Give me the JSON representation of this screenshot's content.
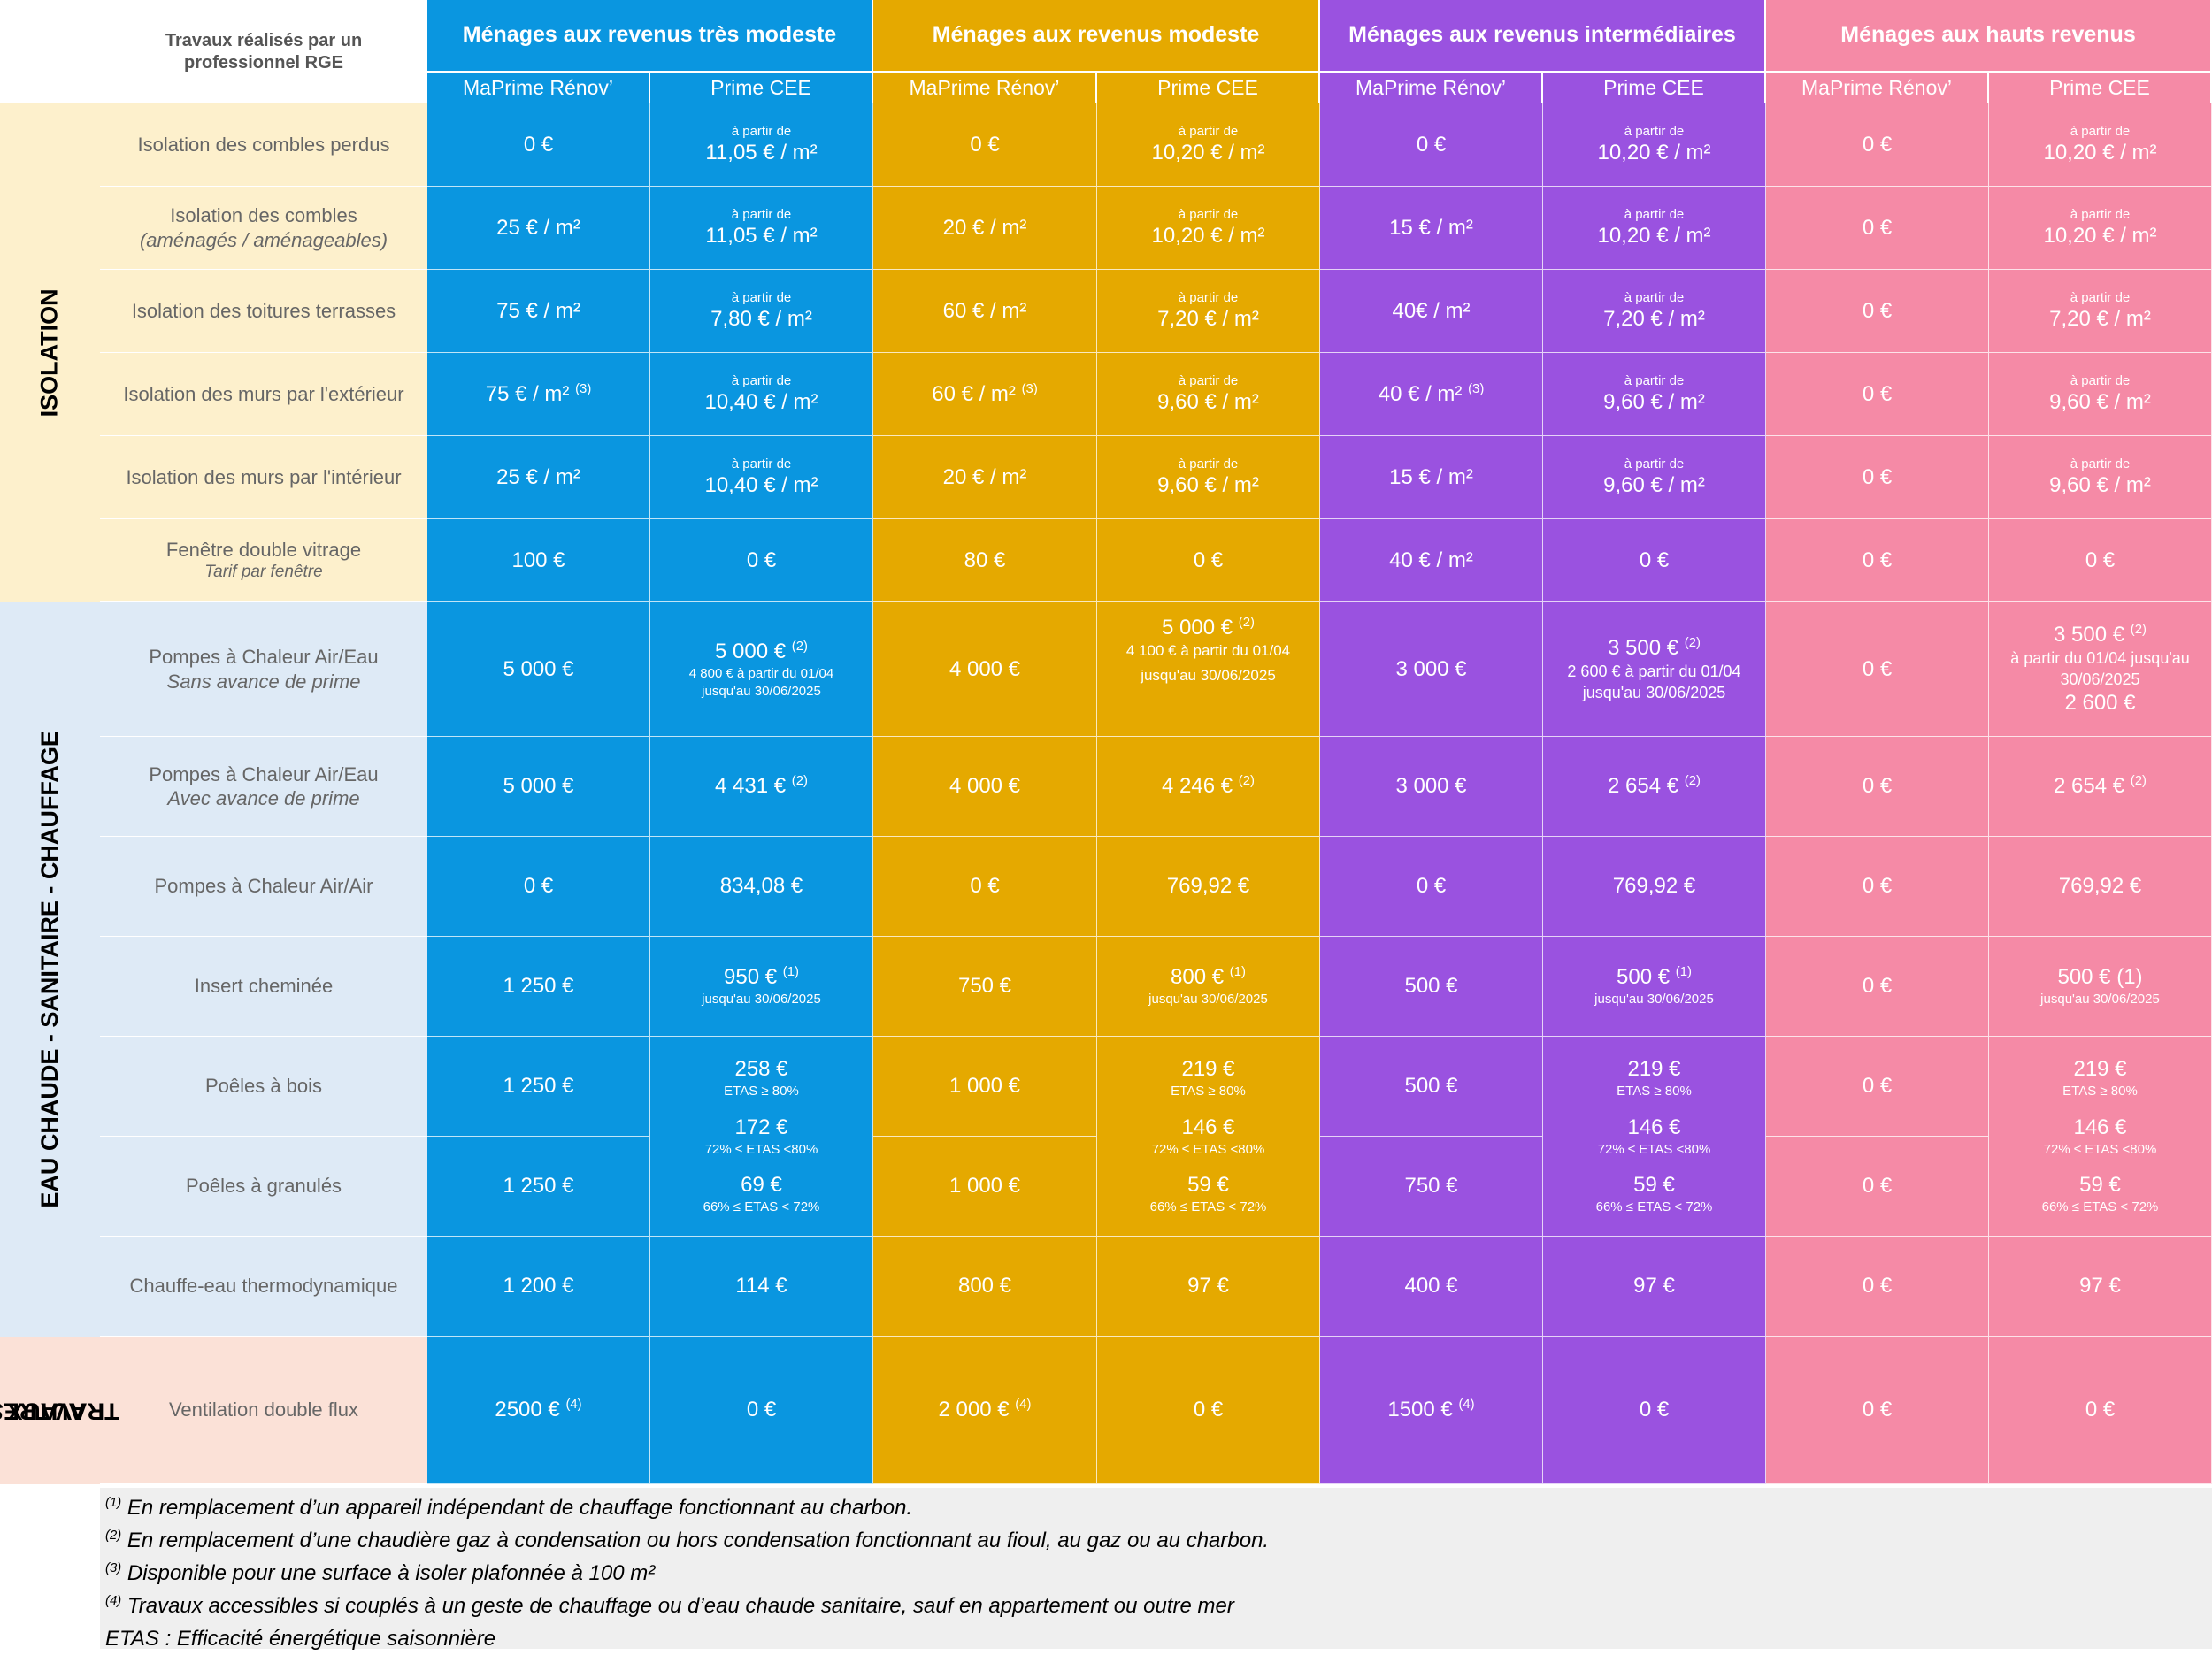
{
  "header": {
    "label": "Travaux réalisés par un professionnel RGE",
    "groups": [
      {
        "title": "Ménages aux revenus très modeste",
        "color": "#0a96e0"
      },
      {
        "title": "Ménages aux revenus modeste",
        "color": "#e5a900"
      },
      {
        "title": "Ménages aux revenus intermédiaires",
        "color": "#9a52e0"
      },
      {
        "title": "Ménages aux hauts revenus",
        "color": "#f58aa6"
      }
    ],
    "sub": {
      "mpr": "MaPrime Rénov’",
      "cee": "Prime CEE"
    }
  },
  "categories": {
    "isolation": "ISOLATION",
    "eau": "EAU CHAUDE - SANITAIRE - CHAUFFAGE",
    "autres_1": "AUTRES",
    "autres_2": "TRAVAUX"
  },
  "rows": {
    "combles_perdus": "Isolation des combles perdus",
    "combles_amenages": {
      "l1": "Isolation des combles",
      "l2": "(aménagés / aménageables)"
    },
    "toitures": "Isolation des toitures terrasses",
    "murs_ext": "Isolation des murs par l'extérieur",
    "murs_int": "Isolation des murs par l'intérieur",
    "fenetre": {
      "l1": "Fenêtre double vitrage",
      "l2": "Tarif par fenêtre"
    },
    "pac_sans": {
      "l1": "Pompes à Chaleur Air/Eau",
      "l2": "Sans avance de prime"
    },
    "pac_avec": {
      "l1": "Pompes à Chaleur Air/Eau",
      "l2": "Avec avance de prime"
    },
    "pac_air": "Pompes à Chaleur Air/Air",
    "insert": "Insert cheminée",
    "poeles_bois": "Poêles à bois",
    "poeles_granules": "Poêles à granulés",
    "chauffe_eau": "Chauffe-eau thermodynamique",
    "ventilation": "Ventilation double flux"
  },
  "v": {
    "zero": "0 €",
    "a_partir": "à partir de",
    "p1105": "11,05 € / m²",
    "p1020": "10,20 € / m²",
    "p780": "7,80 € / m²",
    "p720": "7,20 € / m²",
    "p1040": "10,40 € / m²",
    "p960": "9,60 € / m²",
    "m25": "25 € / m²",
    "m20": "20 € / m²",
    "m15": "15 € / m²",
    "m75": "75 € / m²",
    "m60": "60 € / m²",
    "m40": "40€ / m²",
    "m40b": "40 € / m²",
    "m75s": "75 € / m²",
    "m60s": "60 € / m²",
    "m40s": "40 € / m²",
    "sup3": "(3)",
    "sup2": "(2)",
    "sup1": "(1)",
    "sup4": "(4)",
    "e100": "100 €",
    "e80": "80 €",
    "e5000": "5 000 €",
    "e4000": "4 000 €",
    "e3000": "3 000 €",
    "e3500": "3 500 €",
    "tm_pac_l1": "4 800 € à partir du 01/04",
    "tm_pac_l2": "jusqu'au 30/06/2025",
    "m_pac_l1": "4 100 € à partir du 01/04",
    "m_pac_l2": "jusqu'au 30/06/2025",
    "i_pac_l1": "2 600 € à partir du 01/04",
    "i_pac_l2": "jusqu'au 30/06/2025",
    "h_pac_l1": "à partir du 01/04 jusqu'au",
    "h_pac_l2": "30/06/2025",
    "h_pac_l3": "2 600 €",
    "e4431": "4 431 €",
    "e4246": "4 246 €",
    "e2654": "2 654 €",
    "e834": "834,08 €",
    "e769": "769,92 €",
    "e1250": "1 250 €",
    "e750": "750 €",
    "e500": "500 €",
    "e1000": "1 000 €",
    "e950": "950 €",
    "e800": "800 €",
    "e500b": "500 €",
    "e500h": "500 € (1)",
    "jusq": "jusqu'au 30/06/2025",
    "e258": "258 €",
    "e172": "172 €",
    "e69": "69 €",
    "e219": "219 €",
    "e146": "146 €",
    "e59": "59 €",
    "etas80": "ETAS  ≥ 80%",
    "etas72": "72% ≤ ETAS <80%",
    "etas66": "66% ≤ ETAS < 72%",
    "e1200": "1 200 €",
    "e114": "114 €",
    "e800b": "800 €",
    "e97": "97 €",
    "e400": "400 €",
    "e2500": "2500 €",
    "e2000": "2 000 €",
    "e1500": "1500 €"
  },
  "notes": [
    {
      "sup": "(1)",
      "text": "En remplacement d’un appareil indépendant de chauffage fonctionnant au charbon."
    },
    {
      "sup": "(2)",
      "text": "En remplacement d’une chaudière gaz à condensation ou hors condensation fonctionnant au fioul, au gaz ou au charbon."
    },
    {
      "sup": "(3)",
      "text": "Disponible pour une surface à isoler plafonnée à 100 m²"
    },
    {
      "sup": "(4)",
      "text": "Travaux accessibles si couplés à un geste de chauffage ou d’eau chaude sanitaire, sauf en appartement ou outre mer"
    },
    {
      "sup": "",
      "text": "ETAS : Efficacité énergétique saisonnière"
    }
  ]
}
